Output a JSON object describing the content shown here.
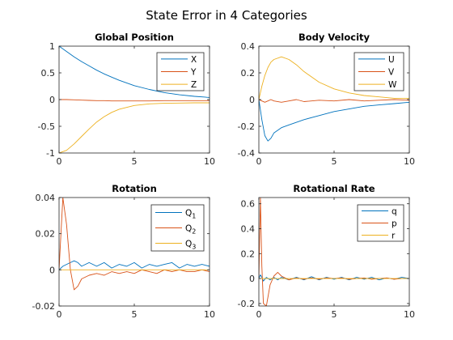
{
  "figure": {
    "suptitle": "State Error in 4 Categories"
  },
  "colors": {
    "series1": "#0072BD",
    "series2": "#D95319",
    "series3": "#EDB120",
    "axis": "#262626",
    "background": "#ffffff"
  },
  "chart_data": [
    {
      "type": "line",
      "title": "Global Position",
      "xlabel": "",
      "ylabel": "",
      "xlim": [
        0,
        10
      ],
      "ylim": [
        -1,
        1
      ],
      "xticks": [
        0,
        5,
        10
      ],
      "xtick_labels": [
        "0",
        "5",
        "10"
      ],
      "yticks": [
        1,
        0.5,
        0,
        -0.5,
        -1
      ],
      "ytick_labels": [
        "1",
        "0.5",
        "0",
        "-0.5",
        "-1"
      ],
      "legend": {
        "position": "top-right",
        "entries": [
          [
            "X",
            ""
          ],
          [
            "Y",
            ""
          ],
          [
            "Z",
            ""
          ]
        ]
      },
      "x": [
        0,
        0.5,
        1,
        1.5,
        2,
        2.5,
        3,
        3.5,
        4,
        5,
        6,
        7,
        8,
        9,
        10
      ],
      "series": [
        {
          "name": "X",
          "values": [
            1.0,
            0.9,
            0.8,
            0.71,
            0.63,
            0.55,
            0.48,
            0.42,
            0.36,
            0.26,
            0.19,
            0.13,
            0.09,
            0.06,
            0.04
          ]
        },
        {
          "name": "Y",
          "values": [
            0,
            0,
            -0.005,
            -0.01,
            -0.015,
            -0.02,
            -0.02,
            -0.025,
            -0.025,
            -0.025,
            -0.025,
            -0.02,
            -0.02,
            -0.02,
            -0.02
          ]
        },
        {
          "name": "Z",
          "values": [
            -1.0,
            -0.95,
            -0.83,
            -0.69,
            -0.55,
            -0.42,
            -0.32,
            -0.24,
            -0.18,
            -0.11,
            -0.08,
            -0.07,
            -0.065,
            -0.06,
            -0.06
          ]
        }
      ]
    },
    {
      "type": "line",
      "title": "Body Velocity",
      "xlabel": "",
      "ylabel": "",
      "xlim": [
        0,
        10
      ],
      "ylim": [
        -0.4,
        0.4
      ],
      "xticks": [
        0,
        5,
        10
      ],
      "xtick_labels": [
        "0",
        "5",
        "10"
      ],
      "yticks": [
        0.4,
        0.2,
        0,
        -0.2,
        -0.4
      ],
      "ytick_labels": [
        "0.4",
        "0.2",
        "0",
        "-0.2",
        "-0.4"
      ],
      "legend": {
        "position": "top-right",
        "entries": [
          [
            "U",
            ""
          ],
          [
            "V",
            ""
          ],
          [
            "W",
            ""
          ]
        ]
      },
      "x": [
        0,
        0.2,
        0.4,
        0.6,
        0.8,
        1,
        1.5,
        2,
        2.5,
        3,
        4,
        5,
        6,
        7,
        8,
        9,
        10
      ],
      "series": [
        {
          "name": "U",
          "values": [
            0,
            -0.15,
            -0.27,
            -0.31,
            -0.29,
            -0.25,
            -0.21,
            -0.19,
            -0.17,
            -0.15,
            -0.12,
            -0.09,
            -0.07,
            -0.05,
            -0.04,
            -0.03,
            -0.02
          ]
        },
        {
          "name": "V",
          "values": [
            0,
            -0.01,
            -0.02,
            -0.01,
            0,
            -0.01,
            -0.02,
            -0.01,
            0,
            -0.015,
            -0.005,
            -0.01,
            0,
            -0.01,
            -0.005,
            0,
            -0.005
          ]
        },
        {
          "name": "W",
          "values": [
            0,
            0.1,
            0.18,
            0.24,
            0.28,
            0.3,
            0.32,
            0.3,
            0.26,
            0.21,
            0.13,
            0.08,
            0.05,
            0.03,
            0.02,
            0.01,
            0.01
          ]
        }
      ]
    },
    {
      "type": "line",
      "title": "Rotation",
      "xlabel": "",
      "ylabel": "",
      "xlim": [
        0,
        10
      ],
      "ylim": [
        -0.02,
        0.04
      ],
      "xticks": [
        0,
        5,
        10
      ],
      "xtick_labels": [
        "0",
        "5",
        "10"
      ],
      "yticks": [
        0.04,
        0.02,
        0,
        -0.02
      ],
      "ytick_labels": [
        "0.04",
        "0.02",
        "0",
        "-0.02"
      ],
      "legend": {
        "position": "top-right",
        "entries": [
          [
            "Q",
            "1"
          ],
          [
            "Q",
            "2"
          ],
          [
            "Q",
            "3"
          ]
        ]
      },
      "x": [
        0,
        0.25,
        0.5,
        0.75,
        1,
        1.25,
        1.5,
        2,
        2.5,
        3,
        3.5,
        4,
        4.5,
        5,
        5.5,
        6,
        6.5,
        7,
        7.5,
        8,
        8.5,
        9,
        9.5,
        10
      ],
      "series": [
        {
          "name": "Q1",
          "values": [
            0,
            0.002,
            0.003,
            0.004,
            0.005,
            0.004,
            0.002,
            0.004,
            0.002,
            0.004,
            0.001,
            0.003,
            0.002,
            0.004,
            0.001,
            0.003,
            0.002,
            0.003,
            0.004,
            0.001,
            0.003,
            0.002,
            0.003,
            0.002
          ]
        },
        {
          "name": "Q2",
          "values": [
            0,
            0.04,
            0.025,
            0.0,
            -0.011,
            -0.009,
            -0.005,
            -0.003,
            -0.002,
            -0.003,
            -0.001,
            -0.002,
            -0.001,
            -0.002,
            0,
            -0.001,
            -0.002,
            0,
            -0.001,
            0,
            -0.001,
            -0.001,
            0,
            -0.001
          ]
        },
        {
          "name": "Q3",
          "values": [
            0,
            0,
            0,
            0,
            0,
            0,
            0,
            0,
            0,
            0,
            0,
            0,
            0,
            0,
            0,
            0,
            0,
            0,
            0,
            0,
            0,
            0,
            0,
            0
          ]
        }
      ]
    },
    {
      "type": "line",
      "title": "Rotational Rate",
      "xlabel": "",
      "ylabel": "",
      "xlim": [
        0,
        10
      ],
      "ylim": [
        -0.22,
        0.65
      ],
      "xticks": [
        0,
        5,
        10
      ],
      "xtick_labels": [
        "0",
        "5",
        "10"
      ],
      "yticks": [
        0.6,
        0.4,
        0.2,
        0,
        -0.2
      ],
      "ytick_labels": [
        "0.6",
        "0.4",
        "0.2",
        "0",
        "-0.2"
      ],
      "legend": {
        "position": "top-right",
        "entries": [
          [
            "q",
            ""
          ],
          [
            "p",
            ""
          ],
          [
            "r",
            ""
          ]
        ]
      },
      "x": [
        0,
        0.1,
        0.2,
        0.3,
        0.5,
        0.75,
        1,
        1.25,
        1.5,
        2,
        2.5,
        3,
        3.5,
        4,
        4.5,
        5,
        5.5,
        6,
        6.5,
        7,
        7.5,
        8,
        8.5,
        9,
        9.5,
        10
      ],
      "series": [
        {
          "name": "q",
          "values": [
            0,
            0.03,
            0.01,
            -0.02,
            0.01,
            -0.01,
            0.01,
            -0.01,
            0.01,
            -0.01,
            0.01,
            -0.01,
            0.015,
            -0.01,
            0.01,
            -0.005,
            0.01,
            -0.01,
            0.01,
            -0.005,
            0.01,
            -0.01,
            0.005,
            -0.005,
            0.01,
            0
          ]
        },
        {
          "name": "p",
          "values": [
            0,
            0.65,
            0.1,
            -0.2,
            -0.22,
            -0.05,
            0.02,
            0.05,
            0.02,
            -0.01,
            0.005,
            -0.005,
            0.005,
            -0.005,
            0.005,
            0,
            0.005,
            -0.005,
            0,
            0.005,
            -0.005,
            0,
            0.005,
            -0.005,
            0,
            0
          ]
        },
        {
          "name": "r",
          "values": [
            0,
            0,
            0,
            0,
            0,
            0,
            0,
            0,
            0,
            0,
            0,
            0,
            0,
            0,
            0,
            0,
            0,
            0,
            0,
            0,
            0,
            0,
            0,
            0,
            0,
            0
          ]
        }
      ]
    }
  ]
}
